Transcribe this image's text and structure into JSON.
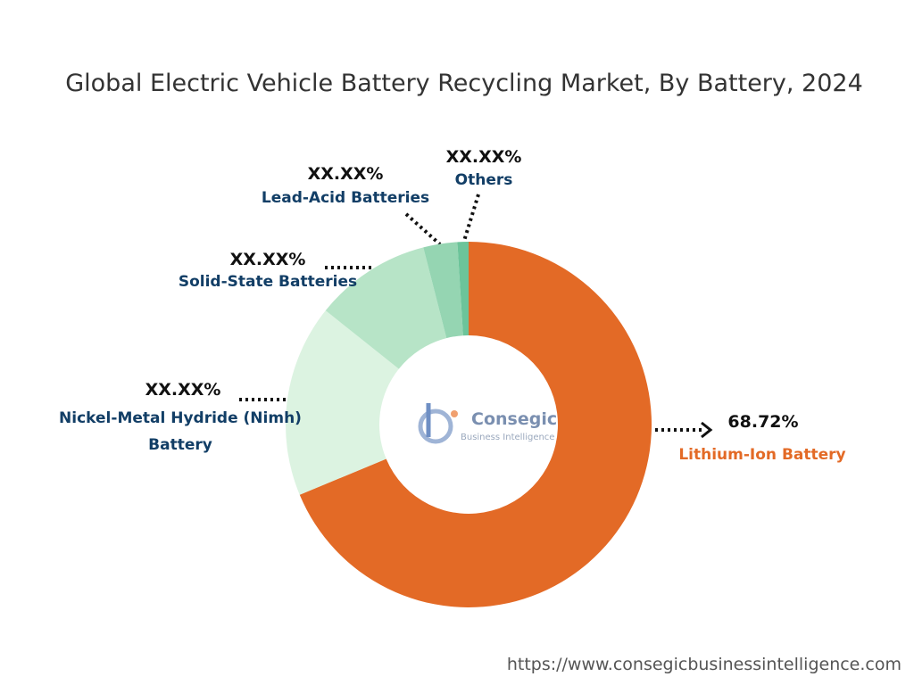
{
  "chart_data": {
    "type": "donut",
    "title": "Global Electric Vehicle Battery Recycling Market, By Battery, 2024",
    "categories": [
      "Lithium-Ion Battery",
      "Nickel-Metal Hydride (Nimh) Battery",
      "Solid-State Batteries",
      "Lead-Acid Batteries",
      "Others"
    ],
    "values": [
      68.72,
      17.0,
      10.3,
      3.0,
      0.98
    ],
    "value_labels": [
      "68.72%",
      "XX.XX%",
      "XX.XX%",
      "XX.XX%",
      "XX.XX%"
    ],
    "colors": [
      "#e36a26",
      "#dcf3e1",
      "#b7e4c7",
      "#95d5b2",
      "#6cc49a"
    ]
  },
  "logo": {
    "name": "Consegic",
    "tagline": "Business Intelligence"
  },
  "source_url": "https://www.consegicbusinessintelligence.com"
}
